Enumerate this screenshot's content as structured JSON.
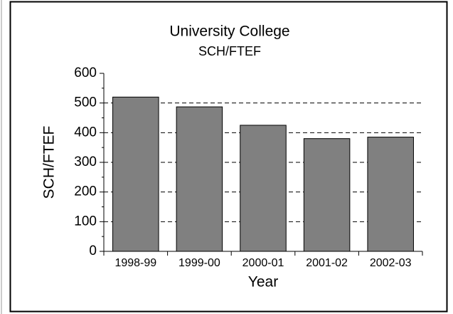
{
  "chart_data": {
    "type": "bar",
    "title": "University College",
    "subtitle": "SCH/FTEF",
    "x_label": "Year",
    "y_label": "SCH/FTEF",
    "categories": [
      "1998-99",
      "1999-00",
      "2000-01",
      "2001-02",
      "2002-03"
    ],
    "values": [
      520,
      487,
      425,
      380,
      385
    ],
    "color": "#808080",
    "ylim": [
      0,
      600
    ],
    "yticks": [
      0,
      100,
      200,
      300,
      400,
      500,
      600
    ],
    "grid": true
  }
}
